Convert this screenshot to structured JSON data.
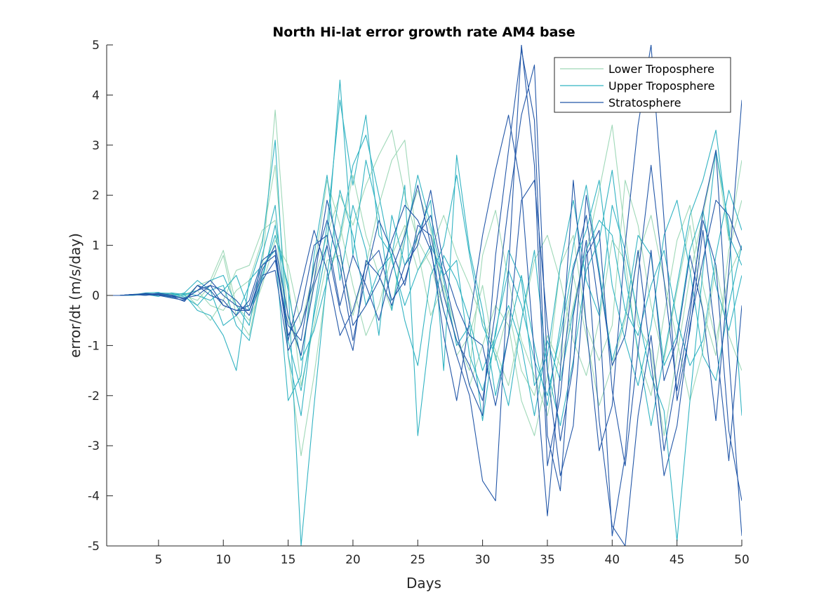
{
  "chart_data": {
    "type": "line",
    "title": "North Hi-lat error growth rate AM4 base",
    "xlabel": "Days",
    "ylabel": "error/dt (m/s/day)",
    "xlim": [
      1,
      50
    ],
    "ylim": [
      -5,
      5
    ],
    "xticks": [
      5,
      10,
      15,
      20,
      25,
      30,
      35,
      40,
      45,
      50
    ],
    "yticks": [
      -5,
      -4,
      -3,
      -2,
      -1,
      0,
      1,
      2,
      3,
      4,
      5
    ],
    "legend_position": "top-right",
    "grid": false,
    "x": [
      1,
      2,
      3,
      4,
      5,
      6,
      7,
      8,
      9,
      10,
      11,
      12,
      13,
      14,
      15,
      16,
      17,
      18,
      19,
      20,
      21,
      22,
      23,
      24,
      25,
      26,
      27,
      28,
      29,
      30,
      31,
      32,
      33,
      34,
      35,
      36,
      37,
      38,
      39,
      40,
      41,
      42,
      43,
      44,
      45,
      46,
      47,
      48,
      49,
      50
    ],
    "series": [
      {
        "name": "Lower Troposphere",
        "color": "#9fd8b8",
        "members": [
          [
            0,
            0,
            0.01,
            0.02,
            0.03,
            0.02,
            0.03,
            0.1,
            -0.2,
            -0.3,
            0.1,
            0.3,
            1.1,
            2.6,
            -0.5,
            -1.2,
            0.3,
            1.2,
            2.0,
            1.4,
            2.2,
            2.8,
            3.3,
            2.0,
            1.1,
            0.6,
            -0.3,
            -1.2,
            -0.8,
            0.2,
            -1.3,
            -0.3,
            -1.5,
            -2.0,
            -0.8,
            -1.4,
            -0.2,
            0.9,
            2.1,
            3.4,
            1.2,
            -0.6,
            -1.1,
            -2.8,
            -1.2,
            0.4,
            1.6,
            2.9,
            1.1,
            2.7
          ],
          [
            0,
            0,
            0.02,
            0.04,
            0.01,
            0.05,
            0.0,
            -0.1,
            0.2,
            0.8,
            -0.4,
            -0.8,
            0.5,
            3.7,
            0.3,
            -1.8,
            -0.6,
            0.7,
            0.8,
            -0.4,
            0.6,
            1.8,
            2.7,
            3.1,
            0.9,
            -0.4,
            0.2,
            -0.7,
            -1.8,
            -1.0,
            -0.2,
            -0.6,
            -2.1,
            -2.8,
            -1.6,
            0.6,
            1.2,
            -0.6,
            -1.3,
            -0.6,
            2.3,
            1.4,
            -0.2,
            -1.3,
            0.1,
            1.4,
            -0.3,
            -1.2,
            0.9,
            1.9
          ],
          [
            0,
            0,
            0.0,
            0.03,
            0.0,
            -0.03,
            0.05,
            -0.2,
            -0.5,
            -0.1,
            0.5,
            0.6,
            1.3,
            1.5,
            -1.2,
            -3.2,
            -1.6,
            0.3,
            1.1,
            2.4,
            1.2,
            0.4,
            -0.3,
            1.3,
            2.1,
            1.3,
            0.1,
            -0.9,
            -1.5,
            0.8,
            1.7,
            0.3,
            -0.9,
            -1.6,
            -2.4,
            -1.1,
            0.4,
            -0.8,
            -2.2,
            -1.4,
            -0.5,
            0.8,
            1.6,
            0.3,
            -0.9,
            -2.1,
            -1.1,
            0.6,
            -0.8,
            -1.5
          ],
          [
            0,
            0,
            0.01,
            0.01,
            0.04,
            0.03,
            -0.06,
            0.2,
            0.3,
            0.9,
            -0.2,
            -0.5,
            0.2,
            1.1,
            0.6,
            -0.6,
            0.5,
            2.3,
            1.4,
            0.2,
            -0.8,
            -0.2,
            0.8,
            1.4,
            0.5,
            0.9,
            1.6,
            0.8,
            0.2,
            -0.5,
            -1.1,
            -1.8,
            -0.5,
            0.7,
            1.2,
            0.3,
            -0.9,
            -1.6,
            -0.5,
            1.1,
            0.7,
            -1.2,
            -2.0,
            -0.4,
            1.1,
            1.8,
            0.2,
            -0.9,
            0.4,
            1.0
          ]
        ]
      },
      {
        "name": "Upper Troposphere",
        "color": "#32b3c2",
        "members": [
          [
            0,
            0,
            0.01,
            0.05,
            0.06,
            -0.02,
            0.05,
            0.3,
            0.1,
            -0.6,
            -0.4,
            0.2,
            1.0,
            3.1,
            -1.2,
            -2.4,
            -0.3,
            1.4,
            3.9,
            2.2,
            3.6,
            1.2,
            0.8,
            -0.5,
            -1.4,
            0.4,
            1.0,
            2.4,
            0.8,
            -0.6,
            -1.2,
            -2.2,
            -0.5,
            0.9,
            -1.5,
            -2.6,
            -1.3,
            0.5,
            1.1,
            2.5,
            0.4,
            -1.1,
            -2.6,
            -1.2,
            0.2,
            1.6,
            2.3,
            3.3,
            1.2,
            0.6
          ],
          [
            0,
            0,
            0.02,
            0.0,
            0.05,
            0.04,
            -0.03,
            -0.2,
            0.1,
            0.2,
            -0.6,
            -0.9,
            0.4,
            1.2,
            0.2,
            -5.0,
            -2.2,
            0.4,
            2.1,
            1.2,
            -0.2,
            0.5,
            0.8,
            2.2,
            -2.8,
            -0.6,
            0.8,
            0.3,
            -0.5,
            -1.5,
            -0.8,
            0.9,
            0.3,
            -1.8,
            -1.2,
            0.6,
            1.9,
            0.3,
            -0.4,
            1.8,
            0.9,
            -0.4,
            -1.6,
            -2.3,
            -4.9,
            -2.1,
            0.5,
            2.9,
            1.4,
            -2.4
          ],
          [
            0,
            0,
            0.0,
            0.02,
            -0.02,
            0.05,
            0.02,
            -0.3,
            -0.4,
            -0.8,
            -1.5,
            0.3,
            0.6,
            0.9,
            -2.1,
            -1.6,
            0.8,
            2.4,
            0.3,
            1.8,
            0.9,
            -0.8,
            1.6,
            0.6,
            1.2,
            1.9,
            -1.5,
            2.8,
            0.9,
            -0.3,
            -2.0,
            -0.8,
            0.4,
            -1.0,
            -2.2,
            -0.6,
            1.0,
            2.2,
            0.5,
            -1.3,
            -0.4,
            1.2,
            0.8,
            -1.4,
            -0.8,
            0.9,
            1.7,
            0.2,
            -0.7,
            0.4
          ],
          [
            0,
            0,
            0.01,
            0.04,
            0.02,
            -0.05,
            0.01,
            0.1,
            0.3,
            0.4,
            -0.2,
            -0.6,
            0.8,
            1.8,
            -0.9,
            -1.9,
            -0.4,
            1.0,
            4.3,
            0.8,
            2.7,
            1.6,
            -0.3,
            1.1,
            2.4,
            1.4,
            0.3,
            -1.0,
            -0.6,
            -2.5,
            -0.7,
            0.5,
            -0.2,
            -1.3,
            -2.0,
            -0.8,
            0.6,
            1.3,
            2.3,
            0.2,
            -0.9,
            -1.8,
            -0.6,
            1.2,
            1.9,
            0.5,
            -1.2,
            -1.7,
            -0.2,
            1.0
          ],
          [
            0,
            0,
            0.02,
            0.03,
            0.01,
            0.01,
            0.04,
            0.0,
            -0.1,
            0.1,
            0.4,
            -0.3,
            0.3,
            1.4,
            0.1,
            -1.3,
            -0.7,
            0.3,
            1.2,
            2.6,
            3.2,
            2.0,
            0.7,
            -0.2,
            0.5,
            1.0,
            0.4,
            0.7,
            -1.2,
            -1.9,
            -0.9,
            -0.2,
            -1.0,
            -2.4,
            -0.9,
            -1.7,
            -0.3,
            0.9,
            1.5,
            1.2,
            -0.3,
            -0.8,
            0.2,
            0.9,
            -0.5,
            -1.4,
            -0.9,
            0.8,
            2.1,
            1.3
          ]
        ]
      },
      {
        "name": "Stratosphere",
        "color": "#2357a8",
        "members": [
          [
            0,
            0,
            0.02,
            0.03,
            0.0,
            -0.05,
            -0.1,
            0.2,
            0.1,
            -0.2,
            -0.3,
            -0.2,
            0.6,
            0.8,
            -0.9,
            0.2,
            1.3,
            0.5,
            -0.8,
            -0.3,
            0.6,
            0.9,
            -0.1,
            0.3,
            1.2,
            1.6,
            0.4,
            -0.7,
            -1.8,
            -2.4,
            0.8,
            2.9,
            4.9,
            3.5,
            -2.8,
            -3.9,
            -0.4,
            1.1,
            -2.5,
            -4.6,
            -5.0,
            -2.4,
            -0.8,
            -3.1,
            -1.6,
            -0.2,
            1.5,
            0.6,
            -2.7,
            -4.1
          ],
          [
            0,
            0,
            0.01,
            0.02,
            0.04,
            0.01,
            -0.08,
            0.1,
            0.3,
            0.0,
            -0.2,
            -0.3,
            0.4,
            0.5,
            -1.1,
            -0.6,
            0.3,
            1.9,
            0.9,
            -0.6,
            -0.2,
            0.3,
            1.1,
            1.8,
            1.5,
            0.9,
            -0.3,
            -1.2,
            -2.0,
            -3.7,
            -4.1,
            0.5,
            5.0,
            2.6,
            -3.4,
            -2.0,
            0.5,
            1.6,
            -0.3,
            -4.8,
            -3.2,
            0.4,
            2.6,
            0.3,
            -1.9,
            -0.4,
            1.7,
            2.9,
            -1.2,
            -4.8
          ],
          [
            0,
            0,
            0.02,
            0.0,
            0.03,
            -0.02,
            -0.12,
            0.2,
            0.0,
            -0.1,
            -0.4,
            -0.1,
            0.7,
            0.9,
            -0.8,
            -0.3,
            1.0,
            1.2,
            -0.2,
            0.8,
            0.2,
            -0.5,
            0.5,
            1.2,
            2.2,
            1.0,
            -0.8,
            -2.1,
            -0.5,
            1.2,
            2.5,
            3.6,
            2.1,
            -1.2,
            -4.4,
            -1.5,
            2.3,
            -0.6,
            -3.1,
            -2.2,
            1.0,
            3.4,
            5.0,
            1.5,
            -2.1,
            -0.7,
            1.3,
            -0.9,
            -3.3,
            -0.2
          ],
          [
            0,
            0,
            0.01,
            0.04,
            0.02,
            -0.03,
            -0.05,
            0.0,
            0.2,
            0.1,
            -0.1,
            -0.4,
            0.3,
            0.7,
            -0.6,
            -0.9,
            0.6,
            1.5,
            0.6,
            -0.9,
            0.4,
            1.5,
            0.9,
            0.2,
            1.4,
            1.2,
            0.0,
            -0.9,
            -1.4,
            -2.1,
            -0.3,
            1.8,
            3.6,
            4.6,
            -1.5,
            -3.6,
            -2.6,
            0.8,
            1.3,
            -1.9,
            -3.4,
            -1.1,
            0.9,
            -1.7,
            -0.9,
            0.8,
            -0.3,
            -2.5,
            0.5,
            3.9
          ],
          [
            0,
            0,
            0.02,
            0.02,
            0.0,
            -0.01,
            -0.07,
            0.1,
            0.2,
            -0.2,
            -0.3,
            -0.3,
            0.5,
            1.0,
            -0.4,
            -1.2,
            0.2,
            1.0,
            -0.3,
            -1.1,
            0.7,
            0.4,
            -0.2,
            0.6,
            1.0,
            2.1,
            0.6,
            -0.2,
            -0.8,
            -1.0,
            -2.2,
            -0.8,
            1.9,
            2.3,
            -0.6,
            -2.9,
            -1.4,
            2.0,
            0.4,
            -1.4,
            -0.8,
            0.9,
            -1.3,
            -3.6,
            -2.6,
            -0.6,
            0.7,
            1.9,
            1.6,
            0.9
          ]
        ]
      }
    ]
  }
}
